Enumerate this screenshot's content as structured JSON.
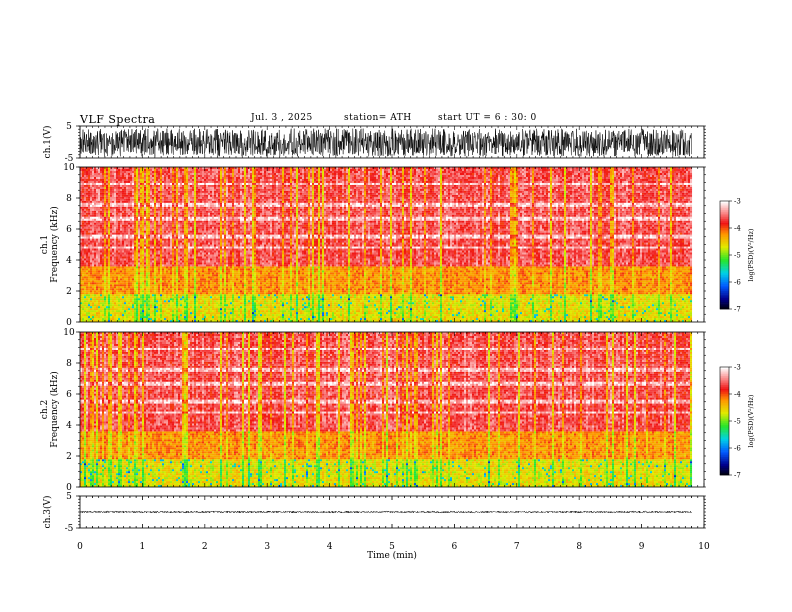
{
  "header": {
    "title": "VLF  Spectra",
    "date": "Jul.  3  , 2025",
    "station": "station= ATH",
    "start": "start  UT  =   6  : 30: 0"
  },
  "chart_data": [
    {
      "type": "line",
      "name": "ch1-waveform",
      "ylabel": "ch.1(V)",
      "ylim": [
        -5,
        5
      ],
      "y_ticks": [
        "5",
        "-5"
      ],
      "xlim": [
        0,
        10
      ],
      "data_end_min": 9.8,
      "amplitude_range": [
        -4.5,
        4.2
      ],
      "color": "#000000"
    },
    {
      "type": "heatmap",
      "name": "ch1-spectrogram",
      "ylabel": "ch.1\nFrequency (kHz)",
      "ylim": [
        0,
        10
      ],
      "y_ticks": [
        "0",
        "2",
        "4",
        "6",
        "8",
        "10"
      ],
      "xlim": [
        0,
        10
      ],
      "data_end_min": 9.8,
      "colorbar": {
        "label": "log(PSD)(V²/Hz)",
        "range": [
          -7,
          -3
        ],
        "ticks": [
          "-3",
          "-4",
          "-5",
          "-6",
          "-7"
        ]
      },
      "bands": [
        {
          "f_range": [
            0,
            1.8
          ],
          "level": -4.6
        },
        {
          "f_range": [
            1.8,
            3.6
          ],
          "level": -4.2
        },
        {
          "f_range": [
            3.6,
            10
          ],
          "level": -3.6
        }
      ],
      "quiet_rows_khz": [
        8.9,
        7.6,
        6.7,
        5.5,
        4.8
      ]
    },
    {
      "type": "heatmap",
      "name": "ch2-spectrogram",
      "ylabel": "ch.2\nFrequency (kHz)",
      "ylim": [
        0,
        10
      ],
      "y_ticks": [
        "0",
        "2",
        "4",
        "6",
        "8",
        "10"
      ],
      "xlim": [
        0,
        10
      ],
      "data_end_min": 9.8,
      "colorbar": {
        "label": "log(PSD)(V²/Hz)",
        "range": [
          -7,
          -3
        ],
        "ticks": [
          "-3",
          "-4",
          "-5",
          "-6",
          "-7"
        ]
      },
      "bands": [
        {
          "f_range": [
            0,
            1.8
          ],
          "level": -4.6
        },
        {
          "f_range": [
            1.8,
            3.6
          ],
          "level": -4.2
        },
        {
          "f_range": [
            3.6,
            10
          ],
          "level": -3.6
        }
      ],
      "quiet_rows_khz": [
        8.9,
        7.6,
        6.7,
        5.5,
        4.8
      ]
    },
    {
      "type": "line",
      "name": "ch3-waveform",
      "ylabel": "ch.3(V)",
      "ylim": [
        -5,
        5
      ],
      "y_ticks": [
        "5",
        "-5"
      ],
      "xlim": [
        0,
        10
      ],
      "data_end_min": 9.8,
      "amplitude_range": [
        -0.3,
        0.3
      ],
      "color": "#000000"
    }
  ],
  "x_axis": {
    "label": "Time  (min)",
    "ticks": [
      "0",
      "1",
      "2",
      "3",
      "4",
      "5",
      "6",
      "7",
      "8",
      "9",
      "10"
    ]
  }
}
